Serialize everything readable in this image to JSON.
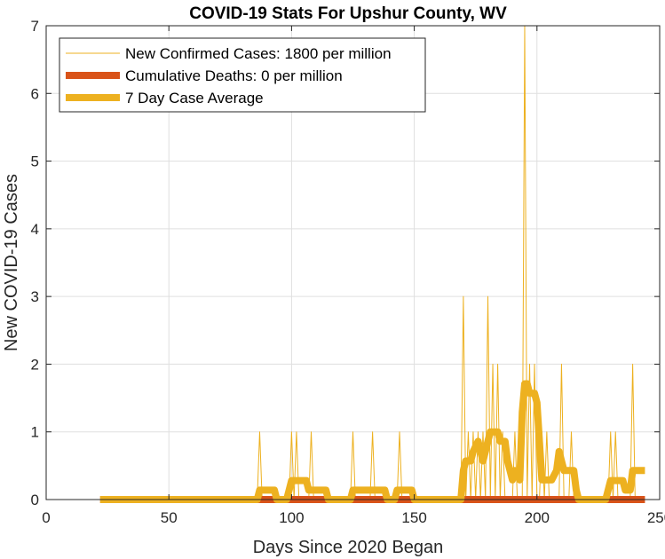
{
  "chart_data": {
    "type": "line",
    "title": "COVID-19 Stats For Upshur County, WV",
    "xlabel": "Days Since 2020 Began",
    "ylabel": "New COVID-19 Cases",
    "xlim": [
      0,
      250
    ],
    "ylim": [
      0,
      7
    ],
    "xticks": [
      0,
      50,
      100,
      150,
      200,
      250
    ],
    "yticks": [
      0,
      1,
      2,
      3,
      4,
      5,
      6,
      7
    ],
    "grid": true,
    "legend_position": "top-left",
    "series": [
      {
        "name": "New Confirmed Cases: 1800 per million",
        "color": "#EDB120",
        "style": "thin",
        "points": [
          [
            22,
            0
          ],
          [
            86,
            0
          ],
          [
            87,
            1
          ],
          [
            88,
            0
          ],
          [
            99,
            0
          ],
          [
            100,
            1
          ],
          [
            101,
            0
          ],
          [
            102,
            1
          ],
          [
            103,
            0
          ],
          [
            107,
            0
          ],
          [
            108,
            1
          ],
          [
            109,
            0
          ],
          [
            124,
            0
          ],
          [
            125,
            1
          ],
          [
            126,
            0
          ],
          [
            132,
            0
          ],
          [
            133,
            1
          ],
          [
            134,
            0
          ],
          [
            143,
            0
          ],
          [
            144,
            1
          ],
          [
            145,
            0
          ],
          [
            169,
            0
          ],
          [
            170,
            3
          ],
          [
            171,
            0
          ],
          [
            172,
            1
          ],
          [
            173,
            0
          ],
          [
            174,
            1
          ],
          [
            175,
            0
          ],
          [
            176,
            1
          ],
          [
            177,
            0
          ],
          [
            178,
            1
          ],
          [
            179,
            0
          ],
          [
            180,
            3
          ],
          [
            181,
            0
          ],
          [
            182,
            2
          ],
          [
            183,
            0
          ],
          [
            184,
            2
          ],
          [
            185,
            0
          ],
          [
            186,
            1
          ],
          [
            187,
            0
          ],
          [
            190,
            0
          ],
          [
            191,
            1
          ],
          [
            192,
            0
          ],
          [
            194,
            0
          ],
          [
            195,
            7
          ],
          [
            196,
            0
          ],
          [
            197,
            2
          ],
          [
            198,
            0
          ],
          [
            199,
            2
          ],
          [
            200,
            0
          ],
          [
            201,
            0
          ],
          [
            202,
            1
          ],
          [
            203,
            0
          ],
          [
            204,
            1
          ],
          [
            205,
            0
          ],
          [
            209,
            0
          ],
          [
            210,
            2
          ],
          [
            211,
            0
          ],
          [
            213,
            0
          ],
          [
            214,
            1
          ],
          [
            215,
            0
          ],
          [
            229,
            0
          ],
          [
            230,
            1
          ],
          [
            231,
            0
          ],
          [
            232,
            1
          ],
          [
            233,
            0
          ],
          [
            238,
            0
          ],
          [
            239,
            2
          ],
          [
            240,
            0
          ],
          [
            244,
            0
          ]
        ]
      },
      {
        "name": "Cumulative Deaths: 0 per million",
        "color": "#D95319",
        "style": "thick",
        "points": [
          [
            22,
            0
          ],
          [
            244,
            0
          ]
        ]
      },
      {
        "name": "7 Day Case Average",
        "color": "#EDB120",
        "style": "thick",
        "points": [
          [
            22,
            0
          ],
          [
            86,
            0
          ],
          [
            87,
            0.14
          ],
          [
            93,
            0.14
          ],
          [
            94,
            0
          ],
          [
            98,
            0
          ],
          [
            99,
            0.14
          ],
          [
            100,
            0.28
          ],
          [
            106,
            0.28
          ],
          [
            107,
            0.14
          ],
          [
            114,
            0.14
          ],
          [
            115,
            0
          ],
          [
            124,
            0
          ],
          [
            125,
            0.14
          ],
          [
            131,
            0.14
          ],
          [
            132,
            0.14
          ],
          [
            138,
            0.14
          ],
          [
            139,
            0
          ],
          [
            142,
            0
          ],
          [
            143,
            0.14
          ],
          [
            149,
            0.14
          ],
          [
            150,
            0
          ],
          [
            169,
            0
          ],
          [
            170,
            0.43
          ],
          [
            171,
            0.57
          ],
          [
            173,
            0.57
          ],
          [
            174,
            0.71
          ],
          [
            176,
            0.86
          ],
          [
            178,
            0.57
          ],
          [
            180,
            0.86
          ],
          [
            181,
            1
          ],
          [
            184,
            1
          ],
          [
            185,
            0.86
          ],
          [
            187,
            0.86
          ],
          [
            188,
            0.57
          ],
          [
            189,
            0.43
          ],
          [
            190,
            0.29
          ],
          [
            191,
            0.43
          ],
          [
            193,
            0.29
          ],
          [
            194,
            1.29
          ],
          [
            195,
            1.71
          ],
          [
            196,
            1.71
          ],
          [
            197,
            1.57
          ],
          [
            199,
            1.57
          ],
          [
            200,
            1.43
          ],
          [
            201,
            0.86
          ],
          [
            202,
            0.29
          ],
          [
            204,
            0.29
          ],
          [
            206,
            0.29
          ],
          [
            208,
            0.43
          ],
          [
            209,
            0.71
          ],
          [
            210,
            0.57
          ],
          [
            211,
            0.43
          ],
          [
            215,
            0.43
          ],
          [
            216,
            0.14
          ],
          [
            217,
            0
          ],
          [
            228,
            0
          ],
          [
            229,
            0.14
          ],
          [
            230,
            0.28
          ],
          [
            235,
            0.28
          ],
          [
            236,
            0.14
          ],
          [
            238,
            0.14
          ],
          [
            239,
            0.43
          ],
          [
            244,
            0.43
          ]
        ]
      }
    ]
  }
}
